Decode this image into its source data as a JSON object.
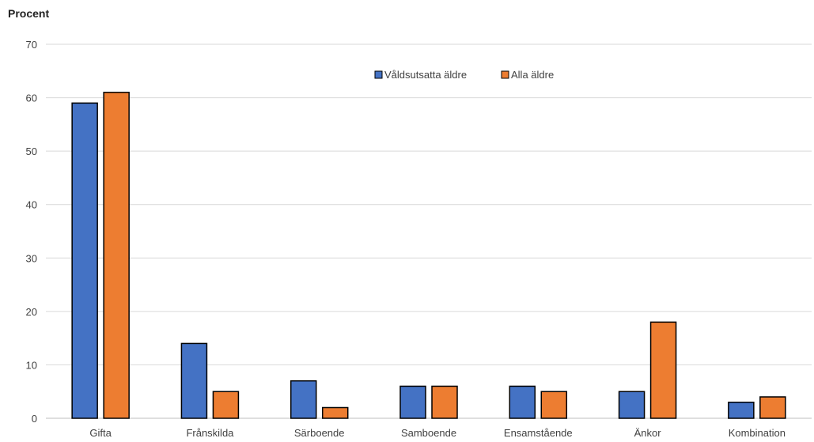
{
  "chart_data": {
    "type": "bar",
    "ylabel": "Procent",
    "ylim": [
      0,
      70
    ],
    "yticks": [
      0,
      10,
      20,
      30,
      40,
      50,
      60,
      70
    ],
    "categories": [
      "Gifta",
      "Frånskilda",
      "Särboende",
      "Samboende",
      "Ensamstående",
      "Änkor",
      "Kombination"
    ],
    "series": [
      {
        "name": "Våldsutsatta äldre",
        "color": "#4472C4",
        "values": [
          59,
          14,
          7,
          6,
          6,
          5,
          3
        ]
      },
      {
        "name": "Alla äldre",
        "color": "#ED7D31",
        "values": [
          61,
          5,
          2,
          6,
          5,
          18,
          4
        ]
      }
    ],
    "grid": true,
    "legend": "top-center"
  }
}
